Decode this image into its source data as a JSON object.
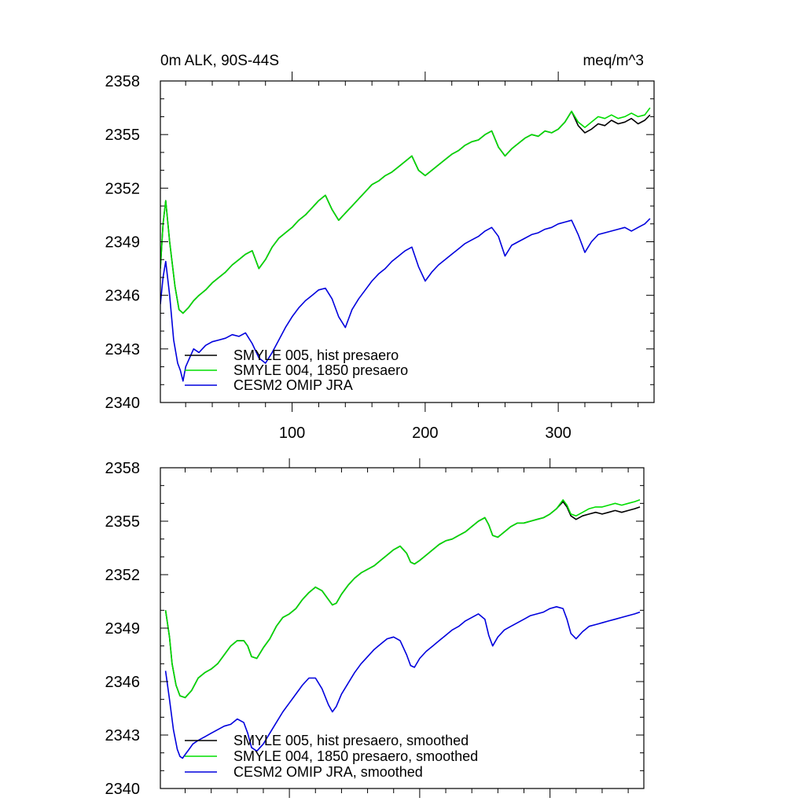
{
  "figure": {
    "title_left": "0m ALK, 90S-44S",
    "title_right": "meq/m^3"
  },
  "chart_data": [
    {
      "type": "line",
      "title": "0m ALK, 90S-44S",
      "units": "meq/m^3",
      "xlim": [
        1,
        372
      ],
      "ylim": [
        2340,
        2358
      ],
      "xticks": [
        100,
        200,
        300
      ],
      "yticks": [
        2340,
        2343,
        2346,
        2349,
        2352,
        2355,
        2358
      ],
      "grid": false,
      "legend": "bottom-left",
      "x_tick_labels_shown": true,
      "series": [
        {
          "name": "SMYLE 005, hist presaero",
          "color": "#000000",
          "x": [
            1,
            3,
            5,
            8,
            12,
            15,
            18,
            22,
            26,
            30,
            35,
            40,
            45,
            50,
            55,
            60,
            65,
            70,
            75,
            80,
            85,
            90,
            95,
            100,
            105,
            110,
            115,
            120,
            125,
            130,
            135,
            140,
            145,
            150,
            155,
            160,
            165,
            170,
            175,
            180,
            185,
            190,
            195,
            200,
            205,
            210,
            215,
            220,
            225,
            230,
            235,
            240,
            245,
            250,
            255,
            260,
            265,
            270,
            275,
            280,
            285,
            290,
            295,
            300,
            305,
            310,
            315,
            320,
            325,
            330,
            335,
            340,
            345,
            350,
            355,
            360,
            365,
            369
          ],
          "values": [
            2347.5,
            2350.0,
            2351.3,
            2349.0,
            2346.5,
            2345.2,
            2345.0,
            2345.3,
            2345.7,
            2346.0,
            2346.3,
            2346.7,
            2347.0,
            2347.3,
            2347.7,
            2348.0,
            2348.3,
            2348.5,
            2347.5,
            2348.0,
            2348.7,
            2349.2,
            2349.5,
            2349.8,
            2350.2,
            2350.5,
            2350.9,
            2351.3,
            2351.6,
            2350.8,
            2350.2,
            2350.6,
            2351.0,
            2351.4,
            2351.8,
            2352.2,
            2352.4,
            2352.7,
            2352.9,
            2353.2,
            2353.5,
            2353.8,
            2353.0,
            2352.7,
            2353.0,
            2353.3,
            2353.6,
            2353.9,
            2354.1,
            2354.4,
            2354.6,
            2354.7,
            2355.0,
            2355.2,
            2354.3,
            2353.8,
            2354.2,
            2354.5,
            2354.8,
            2355.0,
            2354.9,
            2355.2,
            2355.1,
            2355.3,
            2355.7,
            2356.3,
            2355.5,
            2355.1,
            2355.3,
            2355.6,
            2355.5,
            2355.8,
            2355.6,
            2355.7,
            2355.9,
            2355.6,
            2355.8,
            2356.1
          ]
        },
        {
          "name": "SMYLE 004, 1850 presaero",
          "color": "#00dd00",
          "x": [
            1,
            3,
            5,
            8,
            12,
            15,
            18,
            22,
            26,
            30,
            35,
            40,
            45,
            50,
            55,
            60,
            65,
            70,
            75,
            80,
            85,
            90,
            95,
            100,
            105,
            110,
            115,
            120,
            125,
            130,
            135,
            140,
            145,
            150,
            155,
            160,
            165,
            170,
            175,
            180,
            185,
            190,
            195,
            200,
            205,
            210,
            215,
            220,
            225,
            230,
            235,
            240,
            245,
            250,
            255,
            260,
            265,
            270,
            275,
            280,
            285,
            290,
            295,
            300,
            305,
            310,
            315,
            320,
            325,
            330,
            335,
            340,
            345,
            350,
            355,
            360,
            365,
            369
          ],
          "values": [
            2347.5,
            2350.0,
            2351.3,
            2349.0,
            2346.5,
            2345.2,
            2345.0,
            2345.3,
            2345.7,
            2346.0,
            2346.3,
            2346.7,
            2347.0,
            2347.3,
            2347.7,
            2348.0,
            2348.3,
            2348.5,
            2347.5,
            2348.0,
            2348.7,
            2349.2,
            2349.5,
            2349.8,
            2350.2,
            2350.5,
            2350.9,
            2351.3,
            2351.6,
            2350.8,
            2350.2,
            2350.6,
            2351.0,
            2351.4,
            2351.8,
            2352.2,
            2352.4,
            2352.7,
            2352.9,
            2353.2,
            2353.5,
            2353.8,
            2353.0,
            2352.7,
            2353.0,
            2353.3,
            2353.6,
            2353.9,
            2354.1,
            2354.4,
            2354.6,
            2354.7,
            2355.0,
            2355.2,
            2354.3,
            2353.8,
            2354.2,
            2354.5,
            2354.8,
            2355.0,
            2354.9,
            2355.2,
            2355.1,
            2355.3,
            2355.7,
            2356.3,
            2355.7,
            2355.4,
            2355.7,
            2356.0,
            2355.9,
            2356.1,
            2355.9,
            2356.0,
            2356.2,
            2356.0,
            2356.1,
            2356.5
          ]
        },
        {
          "name": "CESM2 OMIP JRA",
          "color": "#0000dd",
          "x": [
            1,
            3,
            5,
            8,
            11,
            14,
            16,
            18,
            20,
            23,
            26,
            30,
            35,
            40,
            45,
            50,
            55,
            60,
            65,
            70,
            75,
            80,
            85,
            90,
            95,
            100,
            105,
            110,
            115,
            120,
            125,
            130,
            135,
            140,
            145,
            150,
            155,
            160,
            165,
            170,
            175,
            180,
            185,
            190,
            195,
            200,
            205,
            210,
            215,
            220,
            225,
            230,
            235,
            240,
            245,
            250,
            255,
            260,
            265,
            270,
            275,
            280,
            285,
            290,
            295,
            300,
            305,
            310,
            315,
            320,
            325,
            330,
            335,
            340,
            345,
            350,
            355,
            360,
            365,
            369
          ],
          "values": [
            2345.5,
            2347.0,
            2347.9,
            2346.0,
            2343.5,
            2342.2,
            2341.8,
            2341.2,
            2342.0,
            2342.5,
            2343.0,
            2342.8,
            2343.2,
            2343.4,
            2343.5,
            2343.6,
            2343.8,
            2343.7,
            2343.9,
            2343.3,
            2342.5,
            2342.2,
            2342.8,
            2343.5,
            2344.2,
            2344.8,
            2345.3,
            2345.7,
            2346.0,
            2346.3,
            2346.4,
            2345.8,
            2344.8,
            2344.2,
            2345.2,
            2345.8,
            2346.3,
            2346.8,
            2347.2,
            2347.5,
            2347.9,
            2348.2,
            2348.5,
            2348.7,
            2347.6,
            2346.8,
            2347.3,
            2347.7,
            2348.0,
            2348.3,
            2348.6,
            2348.9,
            2349.1,
            2349.3,
            2349.6,
            2349.8,
            2349.3,
            2348.2,
            2348.8,
            2349.0,
            2349.2,
            2349.4,
            2349.5,
            2349.7,
            2349.8,
            2350.0,
            2350.1,
            2350.2,
            2349.4,
            2348.4,
            2349.0,
            2349.4,
            2349.5,
            2349.6,
            2349.7,
            2349.8,
            2349.6,
            2349.8,
            2350.0,
            2350.3
          ]
        }
      ]
    },
    {
      "type": "line",
      "xlim": [
        1,
        372
      ],
      "ylim": [
        2340,
        2358
      ],
      "xticks": [
        100,
        200,
        300
      ],
      "yticks": [
        2340,
        2343,
        2346,
        2349,
        2352,
        2355,
        2358
      ],
      "grid": false,
      "legend": "bottom-left",
      "x_tick_labels_shown": false,
      "series": [
        {
          "name": "SMYLE 005, hist presaero, smoothed",
          "color": "#000000",
          "x": [
            5,
            8,
            10,
            13,
            16,
            20,
            25,
            30,
            35,
            40,
            45,
            50,
            55,
            60,
            65,
            68,
            71,
            75,
            80,
            85,
            90,
            95,
            100,
            105,
            110,
            115,
            120,
            125,
            130,
            133,
            136,
            140,
            145,
            150,
            155,
            160,
            165,
            170,
            175,
            180,
            185,
            190,
            193,
            196,
            200,
            205,
            210,
            215,
            220,
            225,
            230,
            235,
            240,
            245,
            250,
            253,
            256,
            260,
            265,
            270,
            275,
            280,
            285,
            290,
            295,
            300,
            305,
            310,
            313,
            316,
            320,
            325,
            330,
            335,
            340,
            345,
            350,
            355,
            360,
            365,
            369
          ],
          "values": [
            2350.0,
            2348.5,
            2347.0,
            2345.8,
            2345.2,
            2345.1,
            2345.5,
            2346.2,
            2346.5,
            2346.7,
            2347.0,
            2347.5,
            2348.0,
            2348.3,
            2348.3,
            2348.0,
            2347.4,
            2347.3,
            2347.9,
            2348.4,
            2349.1,
            2349.6,
            2349.8,
            2350.1,
            2350.6,
            2351.0,
            2351.3,
            2351.1,
            2350.6,
            2350.3,
            2350.4,
            2350.9,
            2351.4,
            2351.8,
            2352.1,
            2352.3,
            2352.5,
            2352.8,
            2353.1,
            2353.4,
            2353.6,
            2353.2,
            2352.7,
            2352.6,
            2352.8,
            2353.1,
            2353.4,
            2353.7,
            2353.9,
            2354.0,
            2354.2,
            2354.4,
            2354.7,
            2355.0,
            2355.2,
            2354.8,
            2354.2,
            2354.1,
            2354.4,
            2354.7,
            2354.9,
            2354.9,
            2355.0,
            2355.1,
            2355.2,
            2355.4,
            2355.7,
            2356.1,
            2355.8,
            2355.3,
            2355.1,
            2355.3,
            2355.4,
            2355.5,
            2355.4,
            2355.5,
            2355.6,
            2355.5,
            2355.6,
            2355.7,
            2355.8
          ]
        },
        {
          "name": "SMYLE 004, 1850 presaero, smoothed",
          "color": "#00dd00",
          "x": [
            5,
            8,
            10,
            13,
            16,
            20,
            25,
            30,
            35,
            40,
            45,
            50,
            55,
            60,
            65,
            68,
            71,
            75,
            80,
            85,
            90,
            95,
            100,
            105,
            110,
            115,
            120,
            125,
            130,
            133,
            136,
            140,
            145,
            150,
            155,
            160,
            165,
            170,
            175,
            180,
            185,
            190,
            193,
            196,
            200,
            205,
            210,
            215,
            220,
            225,
            230,
            235,
            240,
            245,
            250,
            253,
            256,
            260,
            265,
            270,
            275,
            280,
            285,
            290,
            295,
            300,
            305,
            310,
            313,
            316,
            320,
            325,
            330,
            335,
            340,
            345,
            350,
            355,
            360,
            365,
            369
          ],
          "values": [
            2350.0,
            2348.5,
            2347.0,
            2345.8,
            2345.2,
            2345.1,
            2345.5,
            2346.2,
            2346.5,
            2346.7,
            2347.0,
            2347.5,
            2348.0,
            2348.3,
            2348.3,
            2348.0,
            2347.4,
            2347.3,
            2347.9,
            2348.4,
            2349.1,
            2349.6,
            2349.8,
            2350.1,
            2350.6,
            2351.0,
            2351.3,
            2351.1,
            2350.6,
            2350.3,
            2350.4,
            2350.9,
            2351.4,
            2351.8,
            2352.1,
            2352.3,
            2352.5,
            2352.8,
            2353.1,
            2353.4,
            2353.6,
            2353.2,
            2352.7,
            2352.6,
            2352.8,
            2353.1,
            2353.4,
            2353.7,
            2353.9,
            2354.0,
            2354.2,
            2354.4,
            2354.7,
            2355.0,
            2355.2,
            2354.8,
            2354.2,
            2354.1,
            2354.4,
            2354.7,
            2354.9,
            2354.9,
            2355.0,
            2355.1,
            2355.2,
            2355.4,
            2355.7,
            2356.2,
            2355.9,
            2355.4,
            2355.3,
            2355.5,
            2355.7,
            2355.8,
            2355.8,
            2355.9,
            2356.0,
            2355.9,
            2356.0,
            2356.1,
            2356.2
          ]
        },
        {
          "name": "CESM2 OMIP JRA, smoothed",
          "color": "#0000dd",
          "x": [
            5,
            8,
            11,
            14,
            16,
            18,
            20,
            23,
            26,
            30,
            35,
            40,
            45,
            50,
            55,
            60,
            65,
            68,
            71,
            75,
            80,
            85,
            90,
            95,
            100,
            105,
            110,
            115,
            120,
            125,
            130,
            133,
            136,
            140,
            145,
            150,
            155,
            160,
            165,
            170,
            175,
            180,
            185,
            190,
            193,
            196,
            200,
            205,
            210,
            215,
            220,
            225,
            230,
            235,
            240,
            245,
            250,
            253,
            256,
            260,
            265,
            270,
            275,
            280,
            285,
            290,
            295,
            300,
            305,
            310,
            313,
            316,
            320,
            325,
            330,
            335,
            340,
            345,
            350,
            355,
            360,
            365,
            369
          ],
          "values": [
            2346.6,
            2345.0,
            2343.3,
            2342.2,
            2341.8,
            2341.7,
            2341.9,
            2342.2,
            2342.5,
            2342.7,
            2342.9,
            2343.1,
            2343.3,
            2343.5,
            2343.6,
            2343.9,
            2343.7,
            2343.1,
            2342.3,
            2342.1,
            2342.5,
            2343.1,
            2343.7,
            2344.3,
            2344.8,
            2345.3,
            2345.8,
            2346.2,
            2346.2,
            2345.6,
            2344.7,
            2344.3,
            2344.6,
            2345.3,
            2345.9,
            2346.5,
            2347.0,
            2347.4,
            2347.8,
            2348.1,
            2348.4,
            2348.5,
            2348.3,
            2347.5,
            2346.9,
            2346.8,
            2347.3,
            2347.7,
            2348.0,
            2348.3,
            2348.6,
            2348.9,
            2349.1,
            2349.4,
            2349.6,
            2349.8,
            2349.5,
            2348.6,
            2348.0,
            2348.5,
            2348.9,
            2349.1,
            2349.3,
            2349.5,
            2349.7,
            2349.8,
            2349.9,
            2350.1,
            2350.2,
            2350.1,
            2349.5,
            2348.7,
            2348.4,
            2348.8,
            2349.1,
            2349.2,
            2349.3,
            2349.4,
            2349.5,
            2349.6,
            2349.7,
            2349.8,
            2349.9
          ]
        }
      ]
    }
  ]
}
